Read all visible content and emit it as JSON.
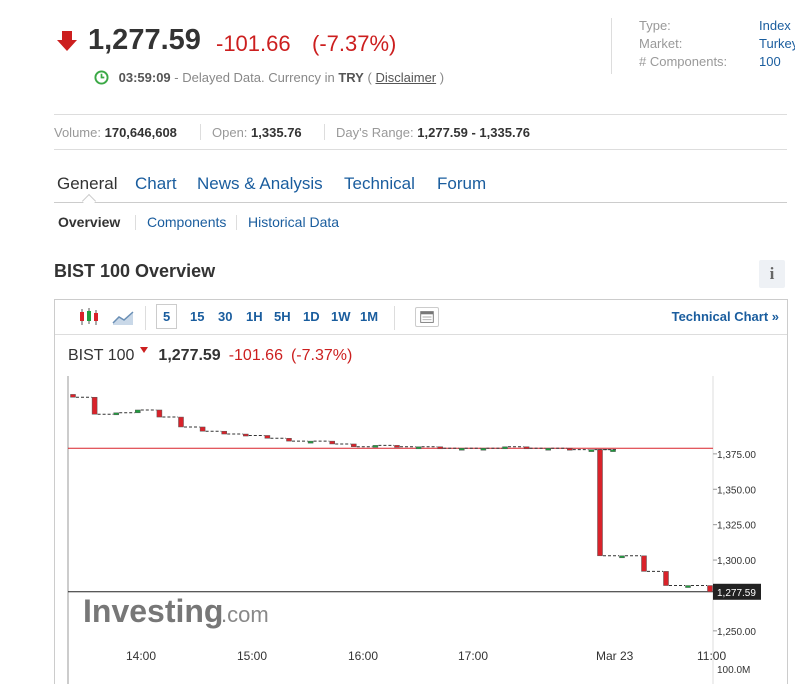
{
  "quote": {
    "last": "1,277.59",
    "change": "-101.66",
    "change_pct": "(-7.37%)",
    "direction_icon": "down-arrow-icon",
    "down_color": "#cc1f1f"
  },
  "delay": {
    "time": "03:59:09",
    "text_a": "- Delayed Data. Currency in",
    "currency": "TRY",
    "paren_open": "(",
    "disclaimer": "Disclaimer",
    "paren_close": ")"
  },
  "info": [
    {
      "label": "Type:",
      "value": "Index"
    },
    {
      "label": "Market:",
      "value": "Turkey"
    },
    {
      "label": "# Components:",
      "value": "100"
    }
  ],
  "stats": {
    "volume_label": "Volume:",
    "volume": "170,646,608",
    "open_label": "Open:",
    "open": "1,335.76",
    "range_label": "Day's Range:",
    "range": "1,277.59 - 1,335.76"
  },
  "tabs": [
    "General",
    "Chart",
    "News & Analysis",
    "Technical",
    "Forum"
  ],
  "subtabs": [
    "Overview",
    "Components",
    "Historical Data"
  ],
  "overview_title": "BIST 100 Overview",
  "info_button": "i",
  "toolbar": {
    "timeframes": [
      "5",
      "15",
      "30",
      "1H",
      "5H",
      "1D",
      "1W",
      "1M"
    ],
    "active_timeframe": "5",
    "technical_chart": "Technical Chart »"
  },
  "chart_data": {
    "type": "candlestick",
    "name": "BIST 100",
    "last": "1,277.59",
    "change": "-101.66",
    "change_pct": "(-7.37%)",
    "y_ticks": [
      "1,375.00",
      "1,350.00",
      "1,325.00",
      "1,300.00",
      "1,250.00"
    ],
    "y_tick_values": [
      1375,
      1350,
      1325,
      1300,
      1250
    ],
    "ylim": [
      1240,
      1430
    ],
    "price_marker": "1,277.59",
    "price_marker_value": 1277.59,
    "prev_close_value": 1379,
    "x_ticks": [
      "14:00",
      "15:00",
      "16:00",
      "17:00",
      "Mar 23",
      "11:00"
    ],
    "volume_label": "100.0M",
    "watermark": "Investing",
    "watermark_suffix": ".com",
    "up_color": "#1e9e3e",
    "down_color": "#d9222a",
    "closes": [
      1415,
      1403,
      1404,
      1406,
      1401,
      1394,
      1391,
      1389,
      1388,
      1386,
      1384,
      1384,
      1382,
      1380,
      1381,
      1380,
      1380,
      1379,
      1379,
      1379,
      1380,
      1379,
      1379,
      1378,
      1378,
      1378,
      1303,
      1303,
      1292,
      1282,
      1282,
      1277.59
    ],
    "opens": [
      1417,
      1415,
      1403,
      1404,
      1406,
      1401,
      1394,
      1391,
      1389,
      1388,
      1386,
      1384,
      1384,
      1382,
      1380,
      1381,
      1380,
      1380,
      1379,
      1379,
      1379,
      1380,
      1379,
      1379,
      1378,
      1378,
      1378,
      1303,
      1303,
      1292,
      1282,
      1282
    ]
  }
}
